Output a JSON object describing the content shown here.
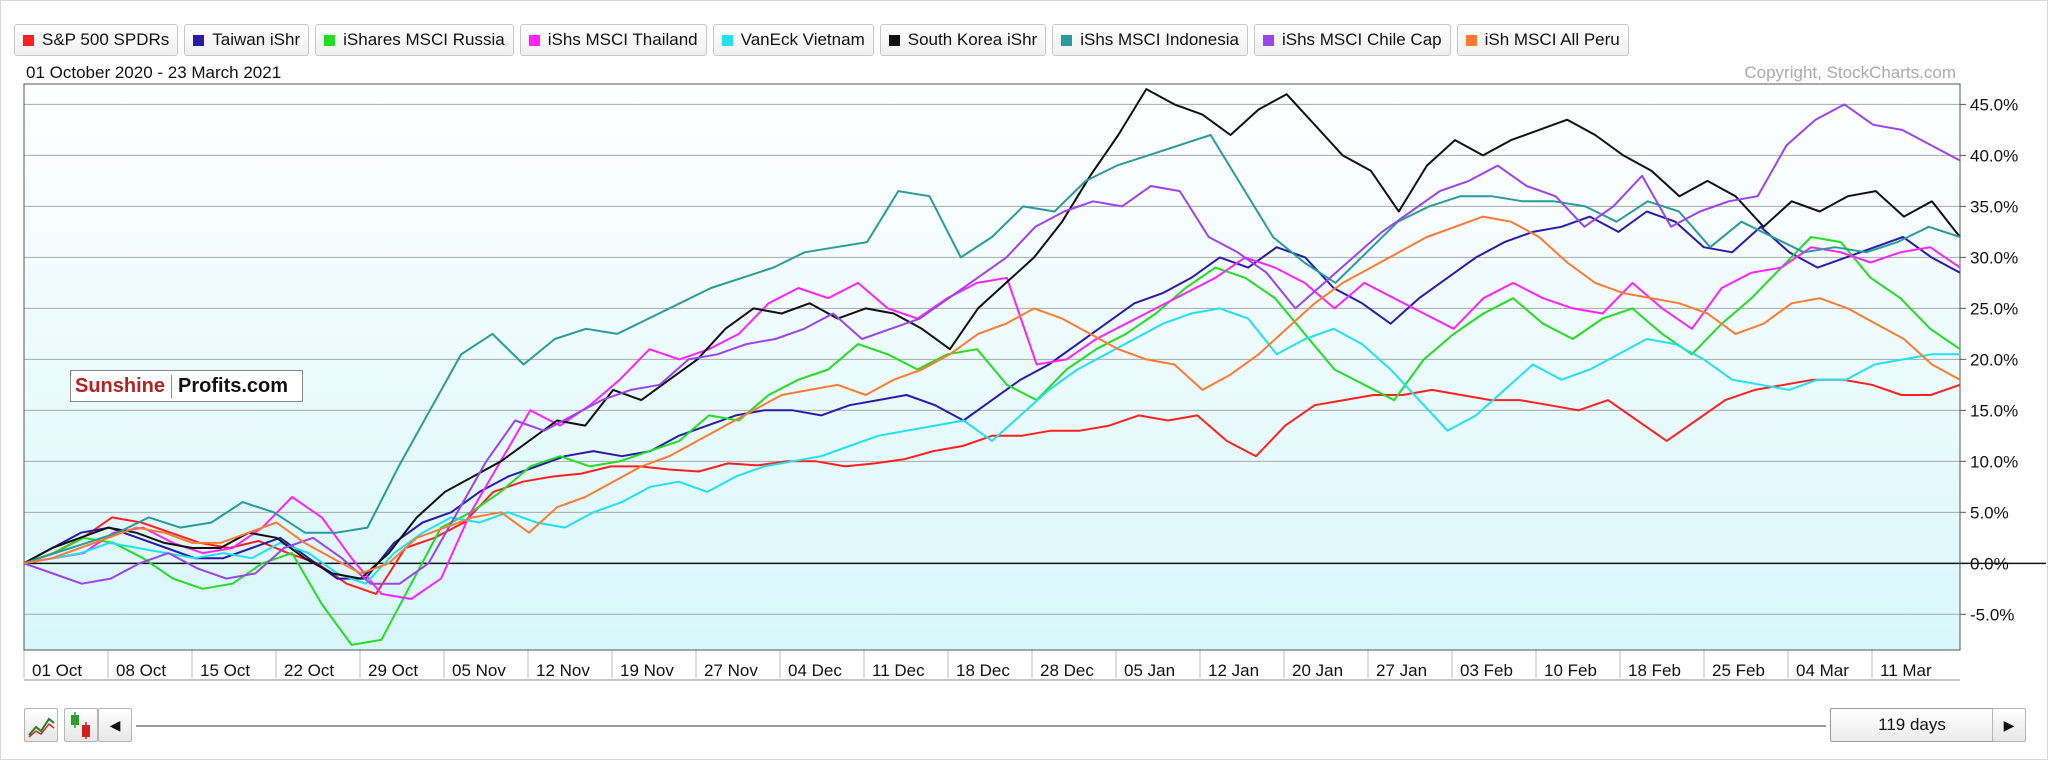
{
  "legend": [
    {
      "name": "S&P 500 SPDRs",
      "color": "#ff2020"
    },
    {
      "name": "Taiwan iShr",
      "color": "#2a1aa8"
    },
    {
      "name": "iShares MSCI Russia",
      "color": "#22dd22"
    },
    {
      "name": "iShs MSCI Thailand",
      "color": "#ff22ff"
    },
    {
      "name": "VanEck Vietnam",
      "color": "#22e0ee"
    },
    {
      "name": "South Korea iShr",
      "color": "#111111"
    },
    {
      "name": "iShs MSCI Indonesia",
      "color": "#2a9a9a"
    },
    {
      "name": "iShs MSCI Chile Cap",
      "color": "#9a44ee"
    },
    {
      "name": "iSh MSCI All Peru",
      "color": "#ff7a30"
    }
  ],
  "date_range": "01 October 2020 - 23 March 2021",
  "copyright": "Copyright, StockCharts.com",
  "watermark": {
    "left": "Sunshine",
    "right": "Profits.com"
  },
  "days_label": "119 days",
  "icons": [
    "line-chart-icon",
    "candle-chart-icon",
    "scroll-left-icon",
    "scroll-right-icon"
  ],
  "chart_data": {
    "type": "line",
    "y_unit": "%",
    "ylim": [
      -8.5,
      47
    ],
    "y_ticks": [
      -5,
      0,
      5,
      10,
      15,
      20,
      25,
      30,
      35,
      40,
      45
    ],
    "y_tick_labels": [
      "-5.0%",
      "0.0%",
      "5.0%",
      "10.0%",
      "15.0%",
      "20.0%",
      "25.0%",
      "30.0%",
      "35.0%",
      "40.0%",
      "45.0%"
    ],
    "x_tick_labels": [
      "01 Oct",
      "08 Oct",
      "15 Oct",
      "22 Oct",
      "29 Oct",
      "05 Nov",
      "12 Nov",
      "19 Nov",
      "27 Nov",
      "04 Dec",
      "11 Dec",
      "18 Dec",
      "28 Dec",
      "05 Jan",
      "12 Jan",
      "20 Jan",
      "27 Jan",
      "03 Feb",
      "10 Feb",
      "18 Feb",
      "25 Feb",
      "04 Mar",
      "11 Mar"
    ],
    "grid": true,
    "legend_position": "top",
    "series": [
      {
        "name": "S&P 500 SPDRs",
        "color": "#ff2020",
        "values": [
          0,
          1.0,
          2.5,
          4.5,
          4.0,
          3.0,
          2.0,
          1.5,
          2.2,
          1.0,
          0.0,
          -2.0,
          -3.0,
          1.5,
          2.5,
          4.0,
          7.0,
          8.0,
          8.5,
          8.8,
          9.5,
          9.5,
          9.2,
          9.0,
          9.8,
          9.6,
          10.0,
          10.0,
          9.5,
          9.8,
          10.2,
          11.0,
          11.5,
          12.5,
          12.5,
          13.0,
          13.0,
          13.5,
          14.5,
          14.0,
          14.5,
          12.0,
          10.5,
          13.5,
          15.5,
          16.0,
          16.5,
          16.5,
          17.0,
          16.5,
          16.0,
          16.0,
          15.5,
          15.0,
          16.0,
          14.0,
          12.0,
          14.0,
          16.0,
          17.0,
          17.5,
          18.0,
          18.0,
          17.5,
          16.5,
          16.5,
          17.5
        ]
      },
      {
        "name": "Taiwan iShr",
        "color": "#2a1aa8",
        "values": [
          0,
          1.5,
          3.0,
          3.5,
          2.5,
          1.5,
          0.5,
          0.5,
          1.5,
          2.5,
          0.5,
          -1.5,
          -1.5,
          2.0,
          4.0,
          5.0,
          7.0,
          8.5,
          9.5,
          10.5,
          11.0,
          10.5,
          11.0,
          12.5,
          13.5,
          14.5,
          15.0,
          15.0,
          14.5,
          15.5,
          16.0,
          16.5,
          15.5,
          14.0,
          16.0,
          18.0,
          19.5,
          21.5,
          23.5,
          25.5,
          26.5,
          28.0,
          30.0,
          29.0,
          31.0,
          30.0,
          27.0,
          25.5,
          23.5,
          26.0,
          28.0,
          30.0,
          31.5,
          32.5,
          33.0,
          34.0,
          32.5,
          34.5,
          33.5,
          31.0,
          30.5,
          33.0,
          30.5,
          29.0,
          30.0,
          31.0,
          32.0,
          30.0,
          28.5
        ]
      },
      {
        "name": "iShares MSCI Russia",
        "color": "#22dd22",
        "values": [
          0,
          1.0,
          2.5,
          2.0,
          0.5,
          -1.5,
          -2.5,
          -2.0,
          0.0,
          1.0,
          -4.0,
          -8.0,
          -7.5,
          -2.0,
          3.5,
          5.0,
          7.0,
          9.5,
          10.5,
          9.5,
          10.0,
          11.0,
          12.0,
          14.5,
          14.0,
          16.5,
          18.0,
          19.0,
          21.5,
          20.5,
          19.0,
          20.5,
          21.0,
          17.5,
          16.0,
          19.0,
          21.0,
          22.5,
          24.5,
          27.0,
          29.0,
          28.0,
          26.0,
          22.5,
          19.0,
          17.5,
          16.0,
          20.0,
          22.5,
          24.5,
          26.0,
          23.5,
          22.0,
          24.0,
          25.0,
          22.5,
          20.5,
          23.5,
          26.0,
          29.0,
          32.0,
          31.5,
          28.0,
          26.0,
          23.0,
          21.0
        ]
      },
      {
        "name": "iShs MSCI Thailand",
        "color": "#ff22ff",
        "values": [
          0,
          0.5,
          1.0,
          3.0,
          3.5,
          2.0,
          1.0,
          1.5,
          3.5,
          6.5,
          4.5,
          0.5,
          -3.0,
          -3.5,
          -1.5,
          5.0,
          10.0,
          15.0,
          13.5,
          15.5,
          18.0,
          21.0,
          20.0,
          21.0,
          22.5,
          25.5,
          27.0,
          26.0,
          27.5,
          25.0,
          24.0,
          26.0,
          27.5,
          28.0,
          19.5,
          20.0,
          22.0,
          23.5,
          25.0,
          26.5,
          28.0,
          30.0,
          29.0,
          27.5,
          25.0,
          27.5,
          26.0,
          24.5,
          23.0,
          26.0,
          27.5,
          26.0,
          25.0,
          24.5,
          27.5,
          25.0,
          23.0,
          27.0,
          28.5,
          29.0,
          31.0,
          30.5,
          29.5,
          30.5,
          31.0,
          29.0
        ]
      },
      {
        "name": "VanEck Vietnam",
        "color": "#22e0ee",
        "values": [
          0,
          0.5,
          1.0,
          2.0,
          1.5,
          1.0,
          0.5,
          1.0,
          0.5,
          2.0,
          1.0,
          -1.0,
          -2.0,
          1.0,
          3.0,
          4.5,
          4.0,
          5.0,
          4.0,
          3.5,
          5.0,
          6.0,
          7.5,
          8.0,
          7.0,
          8.5,
          9.5,
          10.0,
          10.5,
          11.5,
          12.5,
          13.0,
          13.5,
          14.0,
          12.0,
          14.5,
          17.0,
          19.0,
          20.5,
          22.0,
          23.5,
          24.5,
          25.0,
          24.0,
          20.5,
          22.0,
          23.0,
          21.5,
          19.0,
          16.0,
          13.0,
          14.5,
          17.0,
          19.5,
          18.0,
          19.0,
          20.5,
          22.0,
          21.5,
          20.0,
          18.0,
          17.5,
          17.0,
          18.0,
          18.0,
          19.5,
          20.0,
          20.5,
          20.5
        ]
      },
      {
        "name": "South Korea iShr",
        "color": "#111111",
        "values": [
          0,
          1.5,
          2.5,
          3.5,
          3.0,
          2.0,
          1.5,
          1.5,
          3.0,
          2.5,
          0.5,
          -1.0,
          -1.5,
          1.0,
          4.5,
          7.0,
          8.5,
          10.0,
          12.0,
          14.0,
          13.5,
          17.0,
          16.0,
          18.0,
          20.0,
          23.0,
          25.0,
          24.5,
          25.5,
          24.0,
          25.0,
          24.5,
          23.0,
          21.0,
          25.0,
          27.5,
          30.0,
          33.5,
          38.0,
          42.0,
          46.5,
          45.0,
          44.0,
          42.0,
          44.5,
          46.0,
          43.0,
          40.0,
          38.5,
          34.5,
          39.0,
          41.5,
          40.0,
          41.5,
          42.5,
          43.5,
          42.0,
          40.0,
          38.5,
          36.0,
          37.5,
          36.0,
          33.0,
          35.5,
          34.5,
          36.0,
          36.5,
          34.0,
          35.5,
          32.0
        ]
      },
      {
        "name": "iShs MSCI Indonesia",
        "color": "#2a9a9a",
        "values": [
          0,
          1.0,
          2.0,
          3.0,
          4.5,
          3.5,
          4.0,
          6.0,
          5.0,
          3.0,
          3.0,
          3.5,
          9.5,
          15.0,
          20.5,
          22.5,
          19.5,
          22.0,
          23.0,
          22.5,
          24.0,
          25.5,
          27.0,
          28.0,
          29.0,
          30.5,
          31.0,
          31.5,
          36.5,
          36.0,
          30.0,
          32.0,
          35.0,
          34.5,
          37.5,
          39.0,
          40.0,
          41.0,
          42.0,
          37.0,
          32.0,
          29.5,
          27.5,
          30.5,
          33.5,
          35.0,
          36.0,
          36.0,
          35.5,
          35.5,
          35.0,
          33.5,
          35.5,
          34.5,
          31.0,
          33.5,
          32.0,
          30.5,
          31.0,
          30.5,
          31.5,
          33.0,
          32.0
        ]
      },
      {
        "name": "iShs MSCI Chile Cap",
        "color": "#9a44ee",
        "values": [
          0,
          -1.0,
          -2.0,
          -1.5,
          0.0,
          1.0,
          -0.5,
          -1.5,
          -1.0,
          1.5,
          2.5,
          0.5,
          -2.0,
          -2.0,
          0.0,
          5.0,
          10.0,
          14.0,
          13.0,
          14.5,
          16.0,
          17.0,
          17.5,
          20.0,
          20.5,
          21.5,
          22.0,
          23.0,
          24.5,
          22.0,
          23.0,
          24.0,
          26.0,
          28.0,
          30.0,
          33.0,
          34.5,
          35.5,
          35.0,
          37.0,
          36.5,
          32.0,
          30.5,
          28.5,
          25.0,
          27.5,
          30.0,
          32.5,
          34.5,
          36.5,
          37.5,
          39.0,
          37.0,
          36.0,
          33.0,
          35.0,
          38.0,
          33.0,
          34.5,
          35.5,
          36.0,
          41.0,
          43.5,
          45.0,
          43.0,
          42.5,
          41.0,
          39.5
        ]
      },
      {
        "name": "iSh MSCI All Peru",
        "color": "#ff7a30",
        "values": [
          0,
          0.5,
          1.5,
          2.5,
          3.5,
          3.0,
          2.0,
          2.0,
          3.0,
          4.0,
          2.0,
          0.5,
          -1.0,
          0.0,
          2.5,
          3.5,
          4.5,
          5.0,
          3.0,
          5.5,
          6.5,
          8.0,
          9.5,
          10.5,
          12.0,
          13.5,
          15.0,
          16.5,
          17.0,
          17.5,
          16.5,
          18.0,
          19.0,
          20.5,
          22.5,
          23.5,
          25.0,
          24.0,
          22.5,
          21.0,
          20.0,
          19.5,
          17.0,
          18.5,
          20.5,
          23.0,
          25.5,
          27.5,
          29.0,
          30.5,
          32.0,
          33.0,
          34.0,
          33.5,
          32.0,
          29.5,
          27.5,
          26.5,
          26.0,
          25.5,
          24.5,
          22.5,
          23.5,
          25.5,
          26.0,
          25.0,
          23.5,
          22.0,
          19.5,
          18.0
        ]
      }
    ]
  }
}
